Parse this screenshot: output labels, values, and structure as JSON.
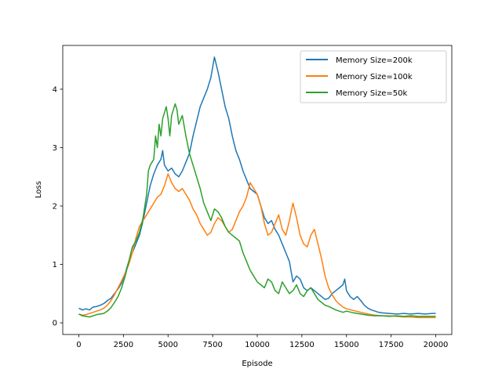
{
  "chart_data": {
    "type": "line",
    "xlabel": "Episode",
    "ylabel": "Loss",
    "xlim": [
      -900,
      20900
    ],
    "ylim": [
      -0.2,
      4.75
    ],
    "xticks": [
      0,
      2500,
      5000,
      7500,
      10000,
      12500,
      15000,
      17500,
      20000
    ],
    "xtick_labels": [
      "0",
      "2500",
      "5000",
      "7500",
      "10000",
      "12500",
      "15000",
      "17500",
      "20000"
    ],
    "yticks": [
      0,
      1,
      2,
      3,
      4
    ],
    "ytick_labels": [
      "0",
      "1",
      "2",
      "3",
      "4"
    ],
    "grid": false,
    "legend_position": "top-right",
    "series": [
      {
        "name": "Memory Size=200k",
        "color": "#1f77b4",
        "points": [
          [
            0,
            0.25
          ],
          [
            200,
            0.22
          ],
          [
            400,
            0.24
          ],
          [
            600,
            0.22
          ],
          [
            800,
            0.27
          ],
          [
            1000,
            0.28
          ],
          [
            1200,
            0.3
          ],
          [
            1400,
            0.33
          ],
          [
            1600,
            0.38
          ],
          [
            1800,
            0.42
          ],
          [
            2000,
            0.5
          ],
          [
            2200,
            0.58
          ],
          [
            2400,
            0.68
          ],
          [
            2600,
            0.85
          ],
          [
            2800,
            1.05
          ],
          [
            3000,
            1.2
          ],
          [
            3200,
            1.35
          ],
          [
            3400,
            1.5
          ],
          [
            3600,
            1.75
          ],
          [
            3800,
            2.05
          ],
          [
            4000,
            2.35
          ],
          [
            4200,
            2.55
          ],
          [
            4400,
            2.7
          ],
          [
            4600,
            2.8
          ],
          [
            4700,
            2.95
          ],
          [
            4800,
            2.7
          ],
          [
            5000,
            2.6
          ],
          [
            5200,
            2.65
          ],
          [
            5400,
            2.55
          ],
          [
            5600,
            2.5
          ],
          [
            5800,
            2.6
          ],
          [
            6000,
            2.75
          ],
          [
            6200,
            2.9
          ],
          [
            6400,
            3.2
          ],
          [
            6600,
            3.45
          ],
          [
            6800,
            3.7
          ],
          [
            7000,
            3.85
          ],
          [
            7200,
            4.0
          ],
          [
            7400,
            4.2
          ],
          [
            7600,
            4.55
          ],
          [
            7800,
            4.3
          ],
          [
            8000,
            4.0
          ],
          [
            8200,
            3.7
          ],
          [
            8400,
            3.5
          ],
          [
            8600,
            3.2
          ],
          [
            8800,
            2.95
          ],
          [
            9000,
            2.8
          ],
          [
            9200,
            2.6
          ],
          [
            9400,
            2.45
          ],
          [
            9600,
            2.3
          ],
          [
            9800,
            2.25
          ],
          [
            10000,
            2.2
          ],
          [
            10200,
            2.0
          ],
          [
            10400,
            1.8
          ],
          [
            10600,
            1.7
          ],
          [
            10800,
            1.75
          ],
          [
            11000,
            1.6
          ],
          [
            11200,
            1.5
          ],
          [
            11400,
            1.35
          ],
          [
            11600,
            1.2
          ],
          [
            11800,
            1.05
          ],
          [
            12000,
            0.7
          ],
          [
            12200,
            0.8
          ],
          [
            12400,
            0.75
          ],
          [
            12600,
            0.6
          ],
          [
            12800,
            0.55
          ],
          [
            13000,
            0.6
          ],
          [
            13200,
            0.55
          ],
          [
            13400,
            0.5
          ],
          [
            13600,
            0.45
          ],
          [
            13800,
            0.4
          ],
          [
            14000,
            0.42
          ],
          [
            14200,
            0.5
          ],
          [
            14400,
            0.55
          ],
          [
            14600,
            0.6
          ],
          [
            14800,
            0.65
          ],
          [
            14900,
            0.75
          ],
          [
            15000,
            0.55
          ],
          [
            15200,
            0.45
          ],
          [
            15400,
            0.4
          ],
          [
            15600,
            0.45
          ],
          [
            15800,
            0.38
          ],
          [
            16000,
            0.3
          ],
          [
            16200,
            0.25
          ],
          [
            16400,
            0.22
          ],
          [
            16600,
            0.2
          ],
          [
            16800,
            0.18
          ],
          [
            17000,
            0.17
          ],
          [
            17400,
            0.16
          ],
          [
            17800,
            0.15
          ],
          [
            18200,
            0.16
          ],
          [
            18600,
            0.15
          ],
          [
            19000,
            0.16
          ],
          [
            19400,
            0.15
          ],
          [
            19800,
            0.16
          ],
          [
            20000,
            0.16
          ]
        ]
      },
      {
        "name": "Memory Size=100k",
        "color": "#ff7f0e",
        "points": [
          [
            0,
            0.15
          ],
          [
            200,
            0.13
          ],
          [
            400,
            0.14
          ],
          [
            600,
            0.16
          ],
          [
            800,
            0.18
          ],
          [
            1000,
            0.2
          ],
          [
            1200,
            0.22
          ],
          [
            1400,
            0.25
          ],
          [
            1600,
            0.3
          ],
          [
            1800,
            0.38
          ],
          [
            2000,
            0.48
          ],
          [
            2200,
            0.6
          ],
          [
            2400,
            0.72
          ],
          [
            2600,
            0.85
          ],
          [
            2800,
            1.0
          ],
          [
            3000,
            1.2
          ],
          [
            3200,
            1.45
          ],
          [
            3400,
            1.65
          ],
          [
            3600,
            1.75
          ],
          [
            3800,
            1.85
          ],
          [
            4000,
            1.95
          ],
          [
            4200,
            2.05
          ],
          [
            4400,
            2.15
          ],
          [
            4600,
            2.2
          ],
          [
            4800,
            2.35
          ],
          [
            5000,
            2.55
          ],
          [
            5200,
            2.4
          ],
          [
            5400,
            2.3
          ],
          [
            5600,
            2.25
          ],
          [
            5800,
            2.3
          ],
          [
            6000,
            2.2
          ],
          [
            6200,
            2.1
          ],
          [
            6400,
            1.95
          ],
          [
            6600,
            1.85
          ],
          [
            6800,
            1.7
          ],
          [
            7000,
            1.6
          ],
          [
            7200,
            1.5
          ],
          [
            7400,
            1.55
          ],
          [
            7600,
            1.7
          ],
          [
            7800,
            1.8
          ],
          [
            8000,
            1.75
          ],
          [
            8200,
            1.65
          ],
          [
            8400,
            1.55
          ],
          [
            8600,
            1.6
          ],
          [
            8800,
            1.75
          ],
          [
            9000,
            1.9
          ],
          [
            9200,
            2.0
          ],
          [
            9400,
            2.15
          ],
          [
            9600,
            2.4
          ],
          [
            9800,
            2.3
          ],
          [
            10000,
            2.2
          ],
          [
            10200,
            2.0
          ],
          [
            10400,
            1.7
          ],
          [
            10600,
            1.5
          ],
          [
            10800,
            1.55
          ],
          [
            11000,
            1.7
          ],
          [
            11200,
            1.85
          ],
          [
            11400,
            1.6
          ],
          [
            11600,
            1.5
          ],
          [
            11800,
            1.75
          ],
          [
            12000,
            2.05
          ],
          [
            12200,
            1.8
          ],
          [
            12400,
            1.5
          ],
          [
            12600,
            1.35
          ],
          [
            12800,
            1.3
          ],
          [
            13000,
            1.5
          ],
          [
            13200,
            1.6
          ],
          [
            13400,
            1.35
          ],
          [
            13600,
            1.1
          ],
          [
            13800,
            0.8
          ],
          [
            14000,
            0.6
          ],
          [
            14200,
            0.48
          ],
          [
            14400,
            0.38
          ],
          [
            14600,
            0.32
          ],
          [
            14800,
            0.27
          ],
          [
            15000,
            0.24
          ],
          [
            15400,
            0.21
          ],
          [
            15800,
            0.18
          ],
          [
            16200,
            0.15
          ],
          [
            16600,
            0.13
          ],
          [
            17000,
            0.12
          ],
          [
            17400,
            0.12
          ],
          [
            17800,
            0.11
          ],
          [
            18200,
            0.1
          ],
          [
            18600,
            0.1
          ],
          [
            19000,
            0.09
          ],
          [
            19400,
            0.09
          ],
          [
            19800,
            0.09
          ],
          [
            20000,
            0.09
          ]
        ]
      },
      {
        "name": "Memory Size=50k",
        "color": "#2ca02c",
        "points": [
          [
            0,
            0.15
          ],
          [
            200,
            0.12
          ],
          [
            400,
            0.11
          ],
          [
            600,
            0.1
          ],
          [
            800,
            0.12
          ],
          [
            1000,
            0.14
          ],
          [
            1200,
            0.15
          ],
          [
            1400,
            0.16
          ],
          [
            1600,
            0.2
          ],
          [
            1800,
            0.26
          ],
          [
            2000,
            0.35
          ],
          [
            2200,
            0.45
          ],
          [
            2400,
            0.6
          ],
          [
            2600,
            0.8
          ],
          [
            2800,
            1.05
          ],
          [
            3000,
            1.3
          ],
          [
            3200,
            1.4
          ],
          [
            3400,
            1.55
          ],
          [
            3600,
            1.8
          ],
          [
            3800,
            2.2
          ],
          [
            3900,
            2.6
          ],
          [
            4000,
            2.7
          ],
          [
            4200,
            2.8
          ],
          [
            4300,
            3.2
          ],
          [
            4400,
            3.0
          ],
          [
            4500,
            3.4
          ],
          [
            4600,
            3.2
          ],
          [
            4700,
            3.5
          ],
          [
            4800,
            3.6
          ],
          [
            4900,
            3.7
          ],
          [
            5000,
            3.5
          ],
          [
            5100,
            3.2
          ],
          [
            5200,
            3.55
          ],
          [
            5400,
            3.75
          ],
          [
            5500,
            3.65
          ],
          [
            5600,
            3.4
          ],
          [
            5800,
            3.55
          ],
          [
            6000,
            3.2
          ],
          [
            6200,
            2.9
          ],
          [
            6400,
            2.7
          ],
          [
            6600,
            2.5
          ],
          [
            6800,
            2.3
          ],
          [
            7000,
            2.05
          ],
          [
            7200,
            1.9
          ],
          [
            7400,
            1.75
          ],
          [
            7600,
            1.95
          ],
          [
            7800,
            1.9
          ],
          [
            8000,
            1.8
          ],
          [
            8200,
            1.65
          ],
          [
            8400,
            1.55
          ],
          [
            8600,
            1.5
          ],
          [
            8800,
            1.45
          ],
          [
            9000,
            1.4
          ],
          [
            9200,
            1.2
          ],
          [
            9400,
            1.05
          ],
          [
            9600,
            0.9
          ],
          [
            9800,
            0.8
          ],
          [
            10000,
            0.7
          ],
          [
            10200,
            0.65
          ],
          [
            10400,
            0.6
          ],
          [
            10600,
            0.75
          ],
          [
            10800,
            0.7
          ],
          [
            11000,
            0.55
          ],
          [
            11200,
            0.5
          ],
          [
            11400,
            0.7
          ],
          [
            11600,
            0.6
          ],
          [
            11800,
            0.5
          ],
          [
            12000,
            0.55
          ],
          [
            12200,
            0.65
          ],
          [
            12400,
            0.5
          ],
          [
            12600,
            0.45
          ],
          [
            12800,
            0.55
          ],
          [
            13000,
            0.6
          ],
          [
            13200,
            0.5
          ],
          [
            13400,
            0.4
          ],
          [
            13600,
            0.35
          ],
          [
            13800,
            0.3
          ],
          [
            14000,
            0.28
          ],
          [
            14200,
            0.25
          ],
          [
            14400,
            0.22
          ],
          [
            14600,
            0.2
          ],
          [
            14800,
            0.18
          ],
          [
            15000,
            0.2
          ],
          [
            15400,
            0.17
          ],
          [
            15800,
            0.15
          ],
          [
            16200,
            0.13
          ],
          [
            16600,
            0.12
          ],
          [
            17000,
            0.12
          ],
          [
            17400,
            0.11
          ],
          [
            17800,
            0.12
          ],
          [
            18200,
            0.11
          ],
          [
            18600,
            0.12
          ],
          [
            19000,
            0.11
          ],
          [
            19400,
            0.11
          ],
          [
            19800,
            0.11
          ],
          [
            20000,
            0.11
          ]
        ]
      }
    ]
  }
}
